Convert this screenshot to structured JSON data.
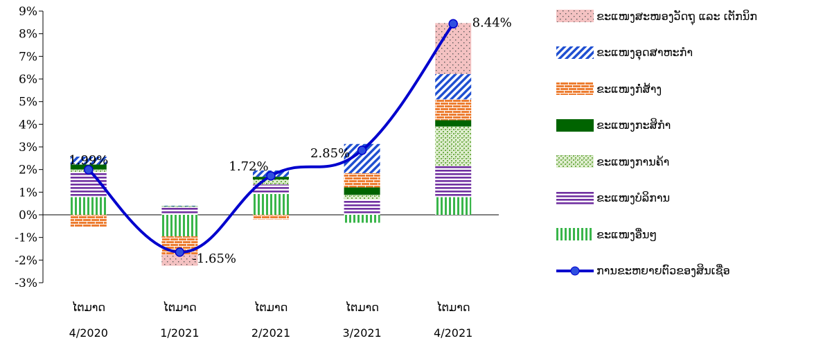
{
  "chart_data": {
    "type": "bar",
    "stacked": true,
    "categories": [
      [
        "ໄຕມາດ",
        "4/2020"
      ],
      [
        "ໄຕມາດ",
        "1/2021"
      ],
      [
        "ໄຕມາດ",
        "2/2021"
      ],
      [
        "ໄຕມາດ",
        "3/2021"
      ],
      [
        "ໄຕມາດ",
        "4/2021"
      ]
    ],
    "ylim": [
      -3,
      9
    ],
    "yticks": [
      -3,
      -2,
      -1,
      0,
      1,
      2,
      3,
      4,
      5,
      6,
      7,
      8,
      9
    ],
    "ytick_suffix": "%",
    "title": "",
    "xlabel": "",
    "ylabel": "",
    "series": [
      {
        "name": "ຂະແໜງອື່ນໆ",
        "pattern": "vstripe",
        "color": "#39b54a",
        "values": [
          0.78,
          -0.95,
          0.92,
          -0.35,
          0.78
        ]
      },
      {
        "name": "ຂະແໜງບໍລິການ",
        "pattern": "hstripe",
        "color": "#7030a0",
        "values": [
          1.12,
          0.35,
          0.42,
          0.68,
          1.37
        ]
      },
      {
        "name": "ຂະແໜງການຄ້າ",
        "pattern": "dots",
        "color": "#70ad47",
        "values": [
          0.1,
          0.02,
          0.22,
          0.2,
          1.75
        ]
      },
      {
        "name": "ຂະແໜງກະສິກຳ",
        "pattern": "solid",
        "color": "#006400",
        "values": [
          0.22,
          0.01,
          0.12,
          0.33,
          0.28
        ]
      },
      {
        "name": "ຂະແໜງກໍ່ສ້າງ",
        "pattern": "brick",
        "color": "#ed7d31",
        "values": [
          -0.55,
          -0.8,
          -0.2,
          0.63,
          0.92
        ]
      },
      {
        "name": "ຂະແໜງອຸດສາຫະກຳ",
        "pattern": "diag",
        "color": "#1f4fd1",
        "values": [
          0.35,
          0.02,
          0.28,
          1.29,
          1.12
        ]
      },
      {
        "name": "ຂະແໜງສະໜອງວັດຖຸ ແລະ ເຕັກນິກ",
        "pattern": "pinkdots",
        "color": "#f4c2c2",
        "values": [
          0.0,
          -0.5,
          0.0,
          0.0,
          2.25
        ]
      }
    ],
    "line": {
      "name": "ການຂະຫຍາຍຕົວຂອງສິນເຊື່ອ",
      "color": "#0000cd",
      "values": [
        1.99,
        -1.65,
        1.72,
        2.85,
        8.44
      ],
      "labels": [
        "1.99%",
        "-1.65%",
        "1.72%",
        "2.85%",
        "8.44%"
      ]
    },
    "legend_position": "right"
  },
  "legend": {
    "items": [
      {
        "label": "ຂະແໜງສະໜອງວັດຖຸ ແລະ ເຕັກນິກ",
        "pattern": "pinkdots"
      },
      {
        "label": "ຂະແໜງອຸດສາຫະກຳ",
        "pattern": "diag"
      },
      {
        "label": "ຂະແໜງກໍ່ສ້າງ",
        "pattern": "brick"
      },
      {
        "label": "ຂະແໜງກະສິກຳ",
        "pattern": "solid"
      },
      {
        "label": "ຂະແໜງການຄ້າ",
        "pattern": "dots"
      },
      {
        "label": "ຂະແໜງບໍລິການ",
        "pattern": "hstripe"
      },
      {
        "label": "ຂະແໜງອື່ນໆ",
        "pattern": "vstripe"
      },
      {
        "label": "ການຂະຫຍາຍຕົວຂອງສິນເຊື່ອ",
        "pattern": "line"
      }
    ]
  }
}
